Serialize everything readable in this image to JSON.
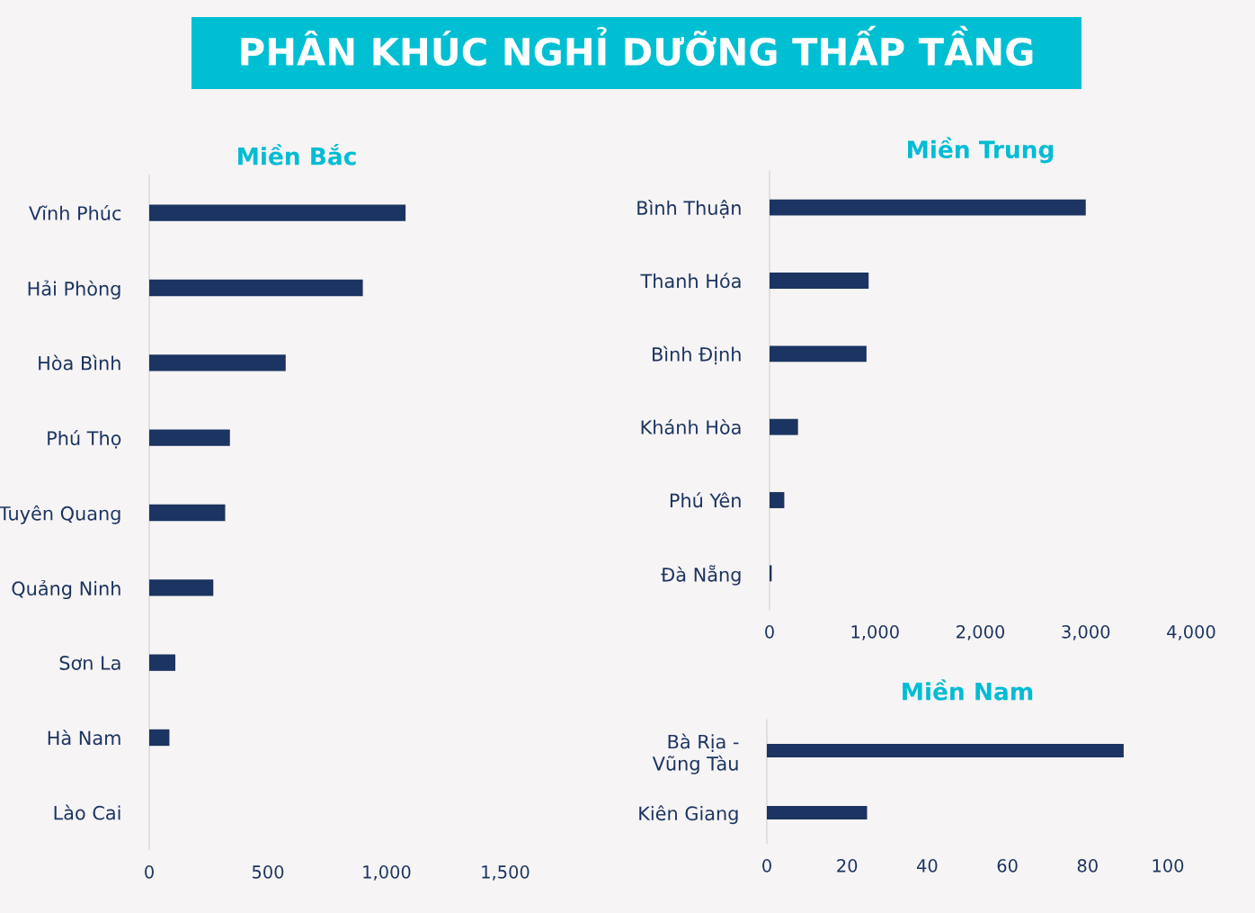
{
  "chart_data": [
    {
      "type": "other",
      "title": "PHÂN KHÚC NGHỈ DƯỠNG THẤP TẦNG",
      "color": "#00bfd3"
    },
    {
      "type": "bar",
      "orientation": "horizontal",
      "title": "Miền Bắc",
      "categories": [
        "Vĩnh Phúc",
        "Hải Phòng",
        "Hòa Bình",
        "Phú Thọ",
        "Tuyên Quang",
        "Quảng Ninh",
        "Sơn La",
        "Hà Nam",
        "Lào Cai"
      ],
      "values": [
        1080,
        900,
        575,
        340,
        320,
        270,
        110,
        85,
        0
      ],
      "color": "#1b3461",
      "xlim": [
        0,
        1500
      ],
      "xticks": [
        0,
        500,
        {
          "value": 1000,
          "label": "1,000"
        },
        {
          "value": 1500,
          "label": "1,500"
        }
      ],
      "grid": false,
      "legend": false
    },
    {
      "type": "bar",
      "orientation": "horizontal",
      "title": "Miền Trung",
      "categories": [
        "Bình Thuận",
        "Thanh Hóa",
        "Bình Định",
        "Khánh Hòa",
        "Phú Yên",
        "Đà Nẵng"
      ],
      "values": [
        3000,
        940,
        920,
        270,
        140,
        20
      ],
      "color": "#1b3461",
      "xlim": [
        0,
        4000
      ],
      "xticks": [
        0,
        {
          "value": 1000,
          "label": "1,000"
        },
        {
          "value": 2000,
          "label": "2,000"
        },
        {
          "value": 3000,
          "label": "3,000"
        },
        {
          "value": 4000,
          "label": "4,000"
        }
      ],
      "grid": false,
      "legend": false
    },
    {
      "type": "bar",
      "orientation": "horizontal",
      "title": "Miền Nam",
      "categories": [
        "Bà Rịa -\nVũng Tàu",
        "Kiên Giang"
      ],
      "values": [
        89,
        25
      ],
      "color": "#1b3461",
      "xlim": [
        0,
        100
      ],
      "xticks": [
        0,
        20,
        40,
        60,
        80,
        100
      ],
      "grid": false,
      "legend": false
    }
  ]
}
